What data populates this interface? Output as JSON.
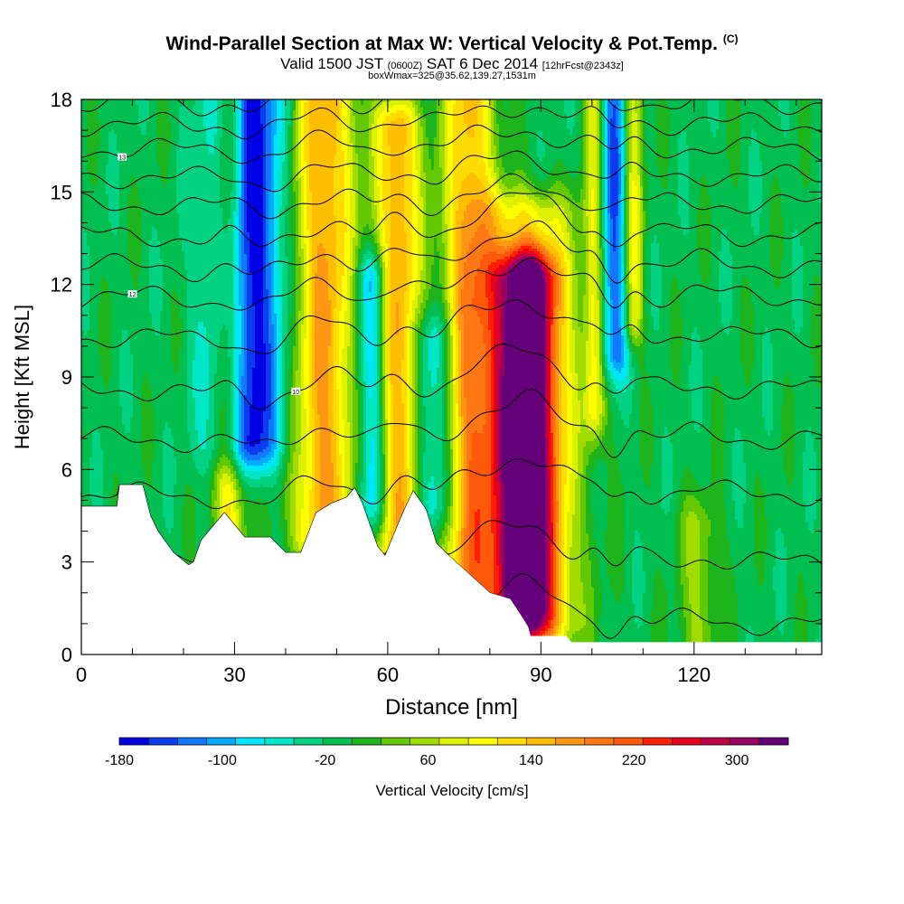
{
  "header": {
    "title": "Wind-Parallel Section at Max W: Vertical Velocity & Pot.Temp.",
    "title_mark": "(C)",
    "valid_prefix": "Valid 1500 JST",
    "valid_utc": "(0600Z)",
    "valid_date": "SAT 6 Dec 2014",
    "forecast_tag": "[12hrFcst@2343z]",
    "box_info": "boxWmax=325@35.62,139.27,1531m"
  },
  "chart_data": {
    "type": "heatmap",
    "xlabel": "Distance [nm]",
    "ylabel": "Height [Kft MSL]",
    "xlim": [
      0,
      145
    ],
    "ylim": [
      0,
      18
    ],
    "x_ticks": [
      0,
      30,
      60,
      90,
      120
    ],
    "y_ticks": [
      0,
      3,
      6,
      9,
      12,
      15,
      18
    ],
    "colorbar": {
      "label": "Vertical Velocity [cm/s]",
      "min": -180,
      "max": 340,
      "tick_labels": [
        -180,
        -100,
        -20,
        60,
        140,
        220,
        300
      ],
      "colors": [
        "#0000e6",
        "#0a3cf0",
        "#1478ff",
        "#00aaff",
        "#00e6ff",
        "#00e6c8",
        "#00d282",
        "#00be50",
        "#1eb41e",
        "#64c800",
        "#a0dc00",
        "#dcf000",
        "#ffff00",
        "#ffdc00",
        "#ffbe00",
        "#ff9614",
        "#ff7814",
        "#ff5a0a",
        "#ff1e00",
        "#e6001e",
        "#be0046",
        "#960064",
        "#640078"
      ]
    },
    "velocity_bands": [
      {
        "x": 32.5,
        "w": 7.0,
        "v": -175,
        "y0": 7.0,
        "y1": 18
      },
      {
        "x": 29.0,
        "w": 3.0,
        "v": 130,
        "y0": 4.0,
        "y1": 18
      },
      {
        "x": 47.5,
        "w": 6.0,
        "v": 175,
        "y0": 4.0,
        "y1": 18
      },
      {
        "x": 57.0,
        "w": 3.0,
        "v": -120,
        "y0": 5.0,
        "y1": 12
      },
      {
        "x": 62.0,
        "w": 4.5,
        "v": 170,
        "y0": 3.5,
        "y1": 17
      },
      {
        "x": 69.0,
        "w": 4.0,
        "v": -90,
        "y0": 5.0,
        "y1": 10
      },
      {
        "x": 76.0,
        "w": 5.0,
        "v": 160,
        "y0": 1.5,
        "y1": 18
      },
      {
        "x": 87.0,
        "w": 6.0,
        "v": 325,
        "y0": 1.5,
        "y1": 12
      },
      {
        "x": 87.0,
        "w": 10.0,
        "v": 120,
        "y0": 1.0,
        "y1": 14
      },
      {
        "x": 104.5,
        "w": 3.0,
        "v": -130,
        "y0": 10,
        "y1": 18
      },
      {
        "x": 108.0,
        "w": 2.0,
        "v": 120,
        "y0": 11,
        "y1": 18
      },
      {
        "x": 100.5,
        "w": 2.0,
        "v": 100,
        "y0": 8,
        "y1": 18
      },
      {
        "x": 121.0,
        "w": 4.0,
        "v": 60,
        "y0": 0.3,
        "y1": 4
      }
    ],
    "terrain_kft": [
      [
        0,
        4.8
      ],
      [
        7,
        4.8
      ],
      [
        7.5,
        5.5
      ],
      [
        12,
        5.5
      ],
      [
        13.5,
        4.5
      ],
      [
        15,
        4.0
      ],
      [
        18,
        3.3
      ],
      [
        21,
        2.9
      ],
      [
        22,
        3.0
      ],
      [
        23.5,
        3.7
      ],
      [
        26,
        4.2
      ],
      [
        28,
        4.6
      ],
      [
        30,
        4.2
      ],
      [
        32,
        3.8
      ],
      [
        37,
        3.8
      ],
      [
        40,
        3.3
      ],
      [
        43,
        3.3
      ],
      [
        46,
        4.6
      ],
      [
        49,
        4.9
      ],
      [
        52,
        5.1
      ],
      [
        53.5,
        5.4
      ],
      [
        55,
        4.9
      ],
      [
        56.5,
        4.2
      ],
      [
        58,
        3.5
      ],
      [
        59.5,
        3.2
      ],
      [
        61,
        3.8
      ],
      [
        63,
        4.6
      ],
      [
        65,
        5.3
      ],
      [
        67.5,
        4.7
      ],
      [
        69.5,
        3.6
      ],
      [
        72,
        3.2
      ],
      [
        76,
        2.6
      ],
      [
        80,
        2.0
      ],
      [
        84,
        1.8
      ],
      [
        86,
        1.3
      ],
      [
        87.5,
        0.9
      ],
      [
        88,
        0.6
      ],
      [
        95,
        0.6
      ],
      [
        96,
        0.4
      ],
      [
        145,
        0.4
      ]
    ],
    "theta_contours": [
      {
        "base": 1.0,
        "label": "",
        "label_x": null
      },
      {
        "base": 3.0,
        "label": "",
        "label_x": null
      },
      {
        "base": 5.2,
        "label": "",
        "label_x": null
      },
      {
        "base": 7.0,
        "label": "",
        "label_x": null
      },
      {
        "base": 8.6,
        "label": "10",
        "label_x": 42
      },
      {
        "base": 10.3,
        "label": "",
        "label_x": null
      },
      {
        "base": 11.6,
        "label": "12",
        "label_x": 10
      },
      {
        "base": 12.6,
        "label": "",
        "label_x": null
      },
      {
        "base": 13.6,
        "label": "",
        "label_x": null
      },
      {
        "base": 14.6,
        "label": "",
        "label_x": null
      },
      {
        "base": 15.5,
        "label": "",
        "label_x": null
      },
      {
        "base": 16.4,
        "label": "13",
        "label_x": 8
      },
      {
        "base": 17.2,
        "label": "",
        "label_x": null
      },
      {
        "base": 17.9,
        "label": "",
        "label_x": null
      }
    ],
    "grid": false
  }
}
